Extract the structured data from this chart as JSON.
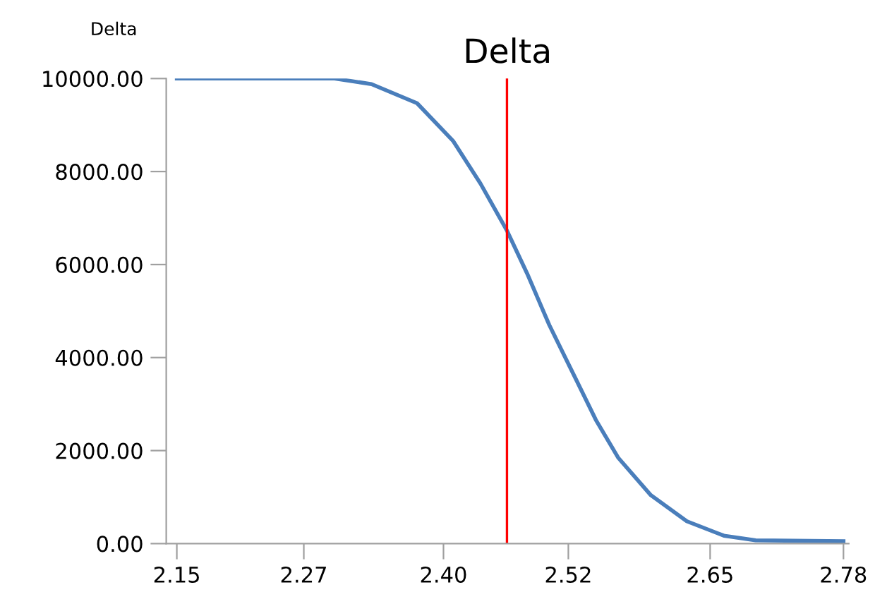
{
  "chart_data": {
    "type": "line",
    "title": "Delta",
    "ylabel": "Delta",
    "x": [
      2.15,
      2.299,
      2.334,
      2.377,
      2.411,
      2.437,
      2.462,
      2.481,
      2.502,
      2.524,
      2.546,
      2.567,
      2.598,
      2.632,
      2.667,
      2.697,
      2.78
    ],
    "series": [
      {
        "color": "#4a7ebb",
        "values": [
          10000,
          10000,
          9880,
          9470,
          8660,
          7740,
          6730,
          5810,
          4700,
          3680,
          2660,
          1850,
          1040,
          480,
          170,
          70,
          50
        ]
      }
    ],
    "xlim": [
      2.14,
      2.785
    ],
    "xticks": [
      {
        "value": 2.15,
        "label": "2.15"
      },
      {
        "value": 2.27,
        "label": "2.27"
      },
      {
        "value": 2.402,
        "label": "2.40"
      },
      {
        "value": 2.52,
        "label": "2.52"
      },
      {
        "value": 2.654,
        "label": "2.65"
      },
      {
        "value": 2.78,
        "label": "2.78"
      }
    ],
    "ylim": [
      0,
      10000
    ],
    "yticks": [
      {
        "value": 0,
        "label": "0.00"
      },
      {
        "value": 2000,
        "label": "2000.00"
      },
      {
        "value": 4000,
        "label": "4000.00"
      },
      {
        "value": 6000,
        "label": "6000.00"
      },
      {
        "value": 8000,
        "label": "8000.00"
      },
      {
        "value": 10000,
        "label": "10000.00"
      }
    ],
    "ref_lines": [
      {
        "axis": "x",
        "value": 2.462,
        "color": "#ff0000"
      }
    ],
    "grid": false,
    "marker": "none",
    "line_style": "solid"
  }
}
